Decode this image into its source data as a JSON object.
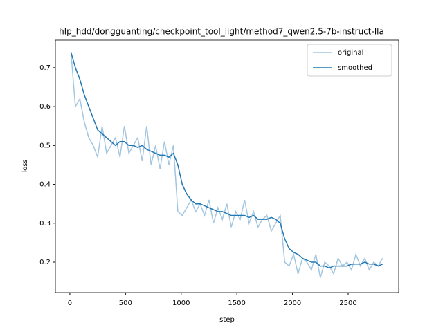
{
  "chart_data": {
    "type": "line",
    "title": "hlp_hdd/dongguanting/checkpoint_tool_light/method7_qwen2.5-7b-instruct-lla",
    "x_label": "step",
    "y_label": "loss",
    "x": [
      10,
      50,
      90,
      130,
      170,
      210,
      250,
      290,
      330,
      370,
      410,
      450,
      490,
      530,
      570,
      610,
      650,
      690,
      730,
      770,
      810,
      850,
      890,
      930,
      970,
      1010,
      1050,
      1090,
      1130,
      1170,
      1210,
      1250,
      1290,
      1330,
      1370,
      1410,
      1450,
      1490,
      1530,
      1570,
      1610,
      1650,
      1690,
      1730,
      1770,
      1810,
      1850,
      1890,
      1930,
      1970,
      2010,
      2050,
      2090,
      2130,
      2170,
      2210,
      2250,
      2290,
      2330,
      2370,
      2410,
      2450,
      2490,
      2530,
      2570,
      2610,
      2650,
      2690,
      2730,
      2770,
      2810
    ],
    "series": [
      {
        "name": "original",
        "color": "#a3c6e0",
        "values": [
          0.74,
          0.6,
          0.62,
          0.56,
          0.52,
          0.5,
          0.47,
          0.55,
          0.48,
          0.5,
          0.52,
          0.47,
          0.55,
          0.48,
          0.5,
          0.52,
          0.46,
          0.55,
          0.45,
          0.5,
          0.44,
          0.51,
          0.45,
          0.5,
          0.33,
          0.32,
          0.34,
          0.36,
          0.33,
          0.35,
          0.32,
          0.36,
          0.3,
          0.34,
          0.31,
          0.35,
          0.29,
          0.33,
          0.31,
          0.36,
          0.3,
          0.33,
          0.29,
          0.31,
          0.32,
          0.28,
          0.3,
          0.32,
          0.2,
          0.19,
          0.22,
          0.17,
          0.21,
          0.2,
          0.18,
          0.22,
          0.16,
          0.2,
          0.19,
          0.17,
          0.21,
          0.19,
          0.2,
          0.18,
          0.22,
          0.19,
          0.21,
          0.18,
          0.2,
          0.19,
          0.21
        ]
      },
      {
        "name": "smoothed",
        "color": "#1f77b4",
        "values": [
          0.74,
          0.7,
          0.67,
          0.63,
          0.6,
          0.57,
          0.54,
          0.53,
          0.52,
          0.51,
          0.5,
          0.51,
          0.51,
          0.5,
          0.5,
          0.495,
          0.5,
          0.49,
          0.485,
          0.48,
          0.475,
          0.475,
          0.47,
          0.48,
          0.45,
          0.4,
          0.375,
          0.36,
          0.35,
          0.35,
          0.345,
          0.34,
          0.335,
          0.33,
          0.33,
          0.325,
          0.32,
          0.32,
          0.32,
          0.32,
          0.315,
          0.32,
          0.31,
          0.31,
          0.31,
          0.315,
          0.31,
          0.3,
          0.26,
          0.235,
          0.225,
          0.22,
          0.21,
          0.205,
          0.2,
          0.2,
          0.19,
          0.19,
          0.185,
          0.19,
          0.19,
          0.19,
          0.19,
          0.195,
          0.195,
          0.195,
          0.2,
          0.195,
          0.195,
          0.19,
          0.195
        ]
      }
    ],
    "xlim": [
      -130,
      2954
    ],
    "ylim": [
      0.1217,
      0.771
    ],
    "xticks": [
      0,
      500,
      1000,
      1500,
      2000,
      2500
    ],
    "yticks": [
      0.2,
      0.3,
      0.4,
      0.5,
      0.6,
      0.7
    ],
    "legend": "upper right"
  }
}
